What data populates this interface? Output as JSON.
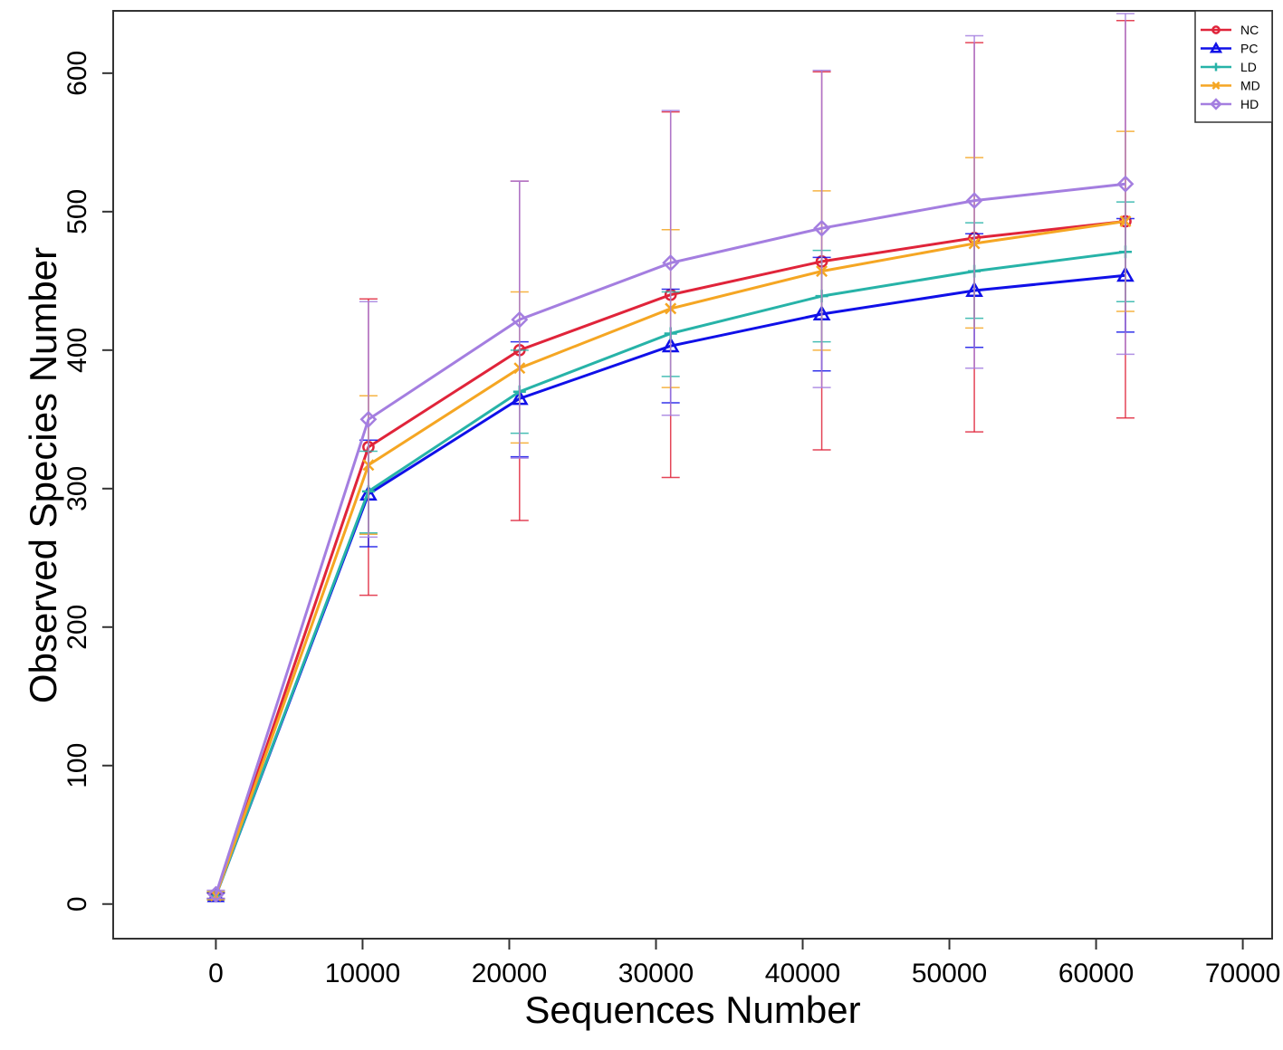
{
  "chart_data": {
    "type": "line",
    "title": "",
    "xlabel": "Sequences Number",
    "ylabel": "Observed Species Number",
    "xlim": [
      -7000,
      72000
    ],
    "ylim": [
      -25,
      645
    ],
    "x_ticks": [
      0,
      10000,
      20000,
      30000,
      40000,
      50000,
      60000,
      70000
    ],
    "y_ticks": [
      0,
      100,
      200,
      300,
      400,
      500,
      600
    ],
    "x": [
      0,
      10400,
      20700,
      31000,
      41300,
      51700,
      62000
    ],
    "legend_position": "top-right",
    "grid": false,
    "series": [
      {
        "name": "NC",
        "color": "#e0243a",
        "marker": "circle",
        "values": [
          6,
          330,
          400,
          440,
          464,
          481,
          493
        ],
        "error_low": [
          4,
          223,
          277,
          308,
          328,
          341,
          351
        ],
        "error_high": [
          8,
          437,
          522,
          572,
          601,
          622,
          638
        ]
      },
      {
        "name": "PC",
        "color": "#1010e8",
        "marker": "triangle",
        "values": [
          6,
          296,
          365,
          403,
          426,
          443,
          454
        ],
        "error_low": [
          4,
          258,
          323,
          362,
          385,
          402,
          413
        ],
        "error_high": [
          8,
          335,
          406,
          444,
          467,
          484,
          495
        ]
      },
      {
        "name": "LD",
        "color": "#27b3a8",
        "marker": "plus",
        "values": [
          6,
          298,
          370,
          412,
          439,
          457,
          471
        ],
        "error_low": [
          3,
          268,
          340,
          381,
          406,
          423,
          435
        ],
        "error_high": [
          9,
          327,
          400,
          442,
          472,
          492,
          507
        ]
      },
      {
        "name": "MD",
        "color": "#f5a623",
        "marker": "x",
        "values": [
          6,
          317,
          387,
          430,
          457,
          477,
          493
        ],
        "error_low": [
          3,
          267,
          333,
          373,
          400,
          416,
          428
        ],
        "error_high": [
          9,
          367,
          442,
          487,
          515,
          539,
          558
        ]
      },
      {
        "name": "HD",
        "color": "#a47ee0",
        "marker": "diamond",
        "values": [
          7,
          350,
          422,
          463,
          488,
          508,
          520
        ],
        "error_low": [
          4,
          265,
          322,
          353,
          373,
          387,
          397
        ],
        "error_high": [
          10,
          435,
          522,
          573,
          602,
          627,
          643
        ]
      }
    ]
  }
}
